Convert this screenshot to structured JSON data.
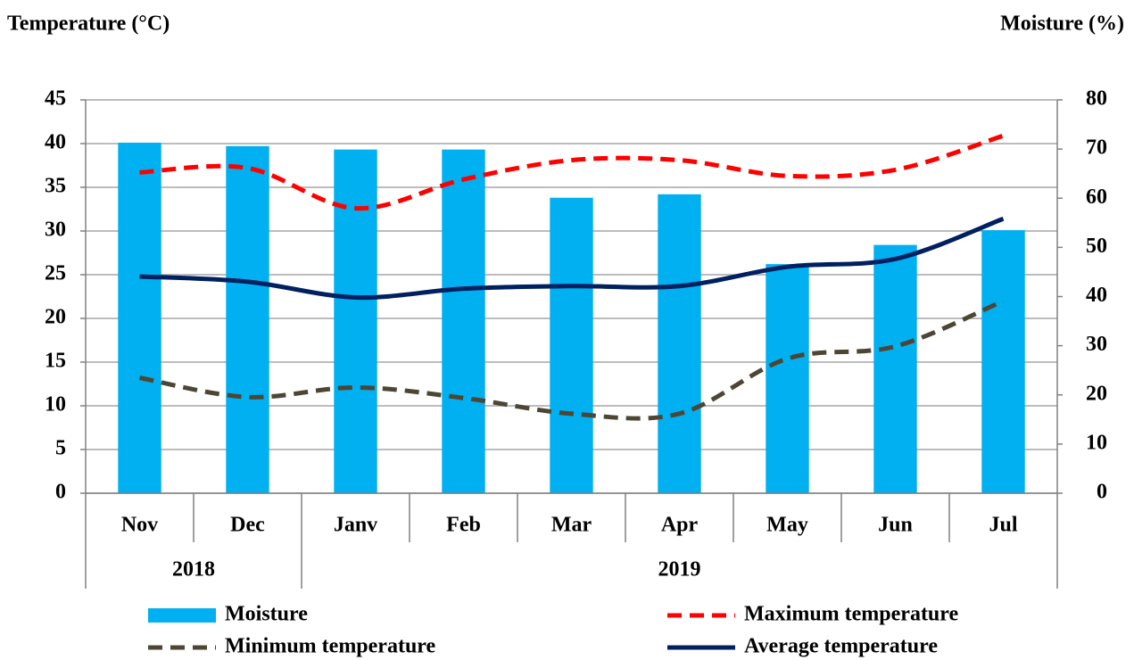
{
  "chart_data": {
    "type": "combo",
    "y_label": "Temperature  (°C)",
    "y2_label": "Moisture (%)",
    "categories": [
      "Nov",
      "Dec",
      "Janv",
      "Feb",
      "Mar",
      "Apr",
      "May",
      "Jun",
      "Jul"
    ],
    "x_groups": [
      {
        "label": "2018",
        "count": 2
      },
      {
        "label": "2019",
        "count": 7
      }
    ],
    "ylim": [
      0,
      45
    ],
    "yticks": [
      0,
      5,
      10,
      15,
      20,
      25,
      30,
      35,
      40,
      45
    ],
    "y2lim": [
      0,
      80
    ],
    "y2ticks": [
      0,
      10,
      20,
      30,
      40,
      50,
      60,
      70,
      80
    ],
    "grid": true,
    "series": [
      {
        "name": "Moisture",
        "type": "bar",
        "axis": "y2",
        "color": "#00b0f0",
        "values": [
          71.3,
          70.6,
          69.9,
          69.9,
          60.1,
          60.8,
          46.6,
          50.5,
          53.5
        ]
      },
      {
        "name": "Maximum temperature",
        "type": "line",
        "dashed": true,
        "color": "#ff0000",
        "values": [
          36.7,
          37.2,
          32.6,
          35.9,
          38.1,
          38.1,
          36.3,
          37.0,
          40.9
        ]
      },
      {
        "name": "Minimum temperature",
        "type": "line",
        "dashed": true,
        "color": "#4d4634",
        "values": [
          13.2,
          11.0,
          12.1,
          10.9,
          9.1,
          9.1,
          15.4,
          16.8,
          22.0
        ]
      },
      {
        "name": "Average temperature",
        "type": "line",
        "dashed": false,
        "color": "#002060",
        "values": [
          24.8,
          24.2,
          22.4,
          23.4,
          23.7,
          23.7,
          25.9,
          26.8,
          31.4
        ]
      }
    ]
  }
}
